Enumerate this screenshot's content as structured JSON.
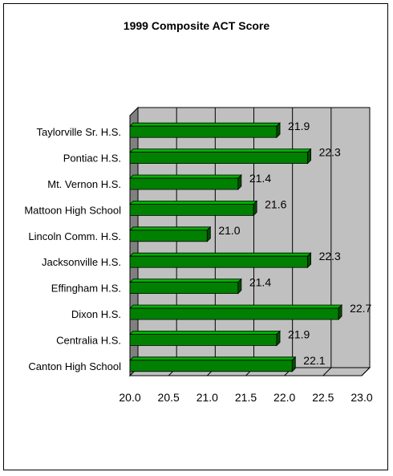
{
  "chart_data": {
    "type": "bar",
    "orientation": "horizontal",
    "title": "1999 Composite ACT Score",
    "categories": [
      "Taylorville Sr. H.S.",
      "Pontiac H.S.",
      "Mt. Vernon H.S.",
      "Mattoon High School",
      "Lincoln Comm. H.S.",
      "Jacksonville H.S.",
      "Effingham H.S.",
      "Dixon H.S.",
      "Centralia H.S.",
      "Canton High School"
    ],
    "values": [
      21.9,
      22.3,
      21.4,
      21.6,
      21.0,
      22.3,
      21.4,
      22.7,
      21.9,
      22.1
    ],
    "value_labels": [
      "21.9",
      "22.3",
      "21.4",
      "21.6",
      "21.0",
      "22.3",
      "21.4",
      "22.7",
      "21.9",
      "22.1"
    ],
    "xlim": [
      20.0,
      23.0
    ],
    "xticks": [
      "20.0",
      "20.5",
      "21.0",
      "21.5",
      "22.0",
      "22.5",
      "23.0"
    ],
    "grid": true,
    "legend": "none",
    "bar_color": "#008000",
    "plot_wall_color": "#c0c0c0"
  }
}
